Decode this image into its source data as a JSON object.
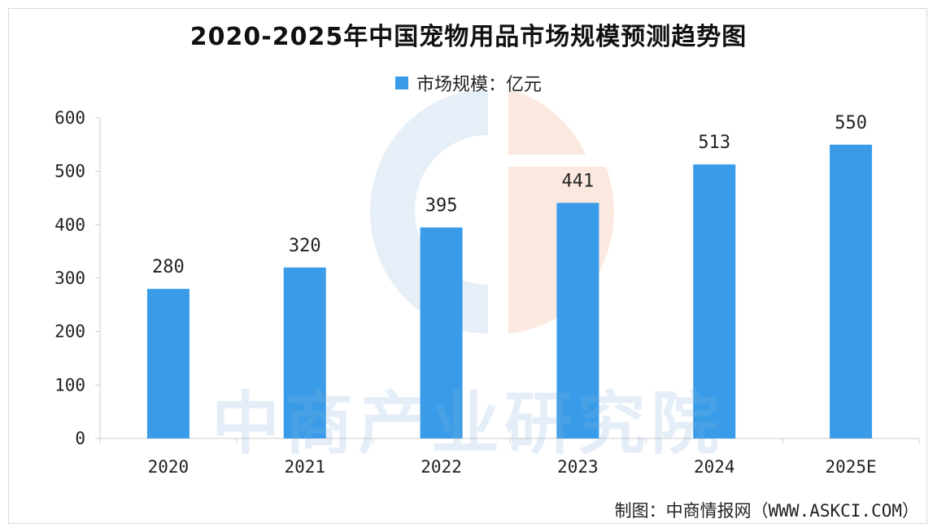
{
  "chart_data": {
    "type": "bar",
    "title": "2020-2025年中国宠物用品市场规模预测趋势图",
    "categories": [
      "2020",
      "2021",
      "2022",
      "2023",
      "2024",
      "2025E"
    ],
    "series": [
      {
        "name": "市场规模：亿元",
        "values": [
          280,
          320,
          395,
          441,
          513,
          550
        ]
      }
    ],
    "data_labels": [
      "280",
      "320",
      "395",
      "441",
      "513",
      "550"
    ],
    "y_ticks": [
      0,
      100,
      200,
      300,
      400,
      500,
      600
    ],
    "ylim": [
      0,
      600
    ],
    "xlabel": "",
    "ylabel": "",
    "grid": false,
    "legend_position": "top-center",
    "bar_color": "#3a9ce8"
  },
  "source": "制图：中商情报网（WWW.ASKCI.COM）"
}
